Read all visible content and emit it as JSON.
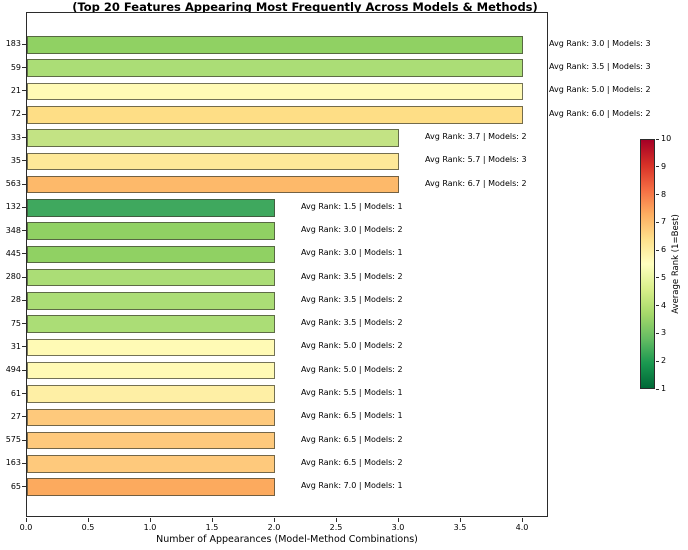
{
  "chart_data": {
    "type": "bar",
    "orientation": "horizontal",
    "title": "(Top 20 Features Appearing Most Frequently Across Models & Methods)",
    "xlabel": "Number of Appearances (Model-Method Combinations)",
    "xlim": [
      0,
      4.21
    ],
    "xticks": [
      "0.0",
      "0.5",
      "1.0",
      "1.5",
      "2.0",
      "2.5",
      "3.0",
      "3.5",
      "4.0"
    ],
    "grid": false,
    "categories": [
      "183",
      "59",
      "21",
      "72",
      "33",
      "35",
      "563",
      "132",
      "348",
      "445",
      "280",
      "28",
      "75",
      "31",
      "494",
      "61",
      "27",
      "575",
      "163",
      "65"
    ],
    "values": [
      4,
      4,
      4,
      4,
      3,
      3,
      3,
      2,
      2,
      2,
      2,
      2,
      2,
      2,
      2,
      2,
      2,
      2,
      2,
      2
    ],
    "features": [
      {
        "feature": "183",
        "appearances": 4,
        "avg_rank": 3.0,
        "models": 3,
        "annotation": "Avg Rank: 3.0 | Models: 3",
        "color": "#90d163"
      },
      {
        "feature": "59",
        "appearances": 4,
        "avg_rank": 3.5,
        "models": 3,
        "annotation": "Avg Rank: 3.5 | Models: 3",
        "color": "#abdd76"
      },
      {
        "feature": "21",
        "appearances": 4,
        "avg_rank": 5.0,
        "models": 2,
        "annotation": "Avg Rank: 5.0 | Models: 2",
        "color": "#fffab5"
      },
      {
        "feature": "72",
        "appearances": 4,
        "avg_rank": 6.0,
        "models": 2,
        "annotation": "Avg Rank: 6.0 | Models: 2",
        "color": "#fede86"
      },
      {
        "feature": "33",
        "appearances": 3,
        "avg_rank": 3.7,
        "models": 2,
        "annotation": "Avg Rank: 3.7 | Models: 2",
        "color": "#c3e384"
      },
      {
        "feature": "35",
        "appearances": 3,
        "avg_rank": 5.7,
        "models": 3,
        "annotation": "Avg Rank: 5.7 | Models: 3",
        "color": "#fee998"
      },
      {
        "feature": "563",
        "appearances": 3,
        "avg_rank": 6.7,
        "models": 2,
        "annotation": "Avg Rank: 6.7 | Models: 2",
        "color": "#fdb96a"
      },
      {
        "feature": "132",
        "appearances": 2,
        "avg_rank": 1.5,
        "models": 1,
        "annotation": "Avg Rank: 1.5 | Models: 1",
        "color": "#3fa85e"
      },
      {
        "feature": "348",
        "appearances": 2,
        "avg_rank": 3.0,
        "models": 2,
        "annotation": "Avg Rank: 3.0 | Models: 2",
        "color": "#90d163"
      },
      {
        "feature": "445",
        "appearances": 2,
        "avg_rank": 3.0,
        "models": 1,
        "annotation": "Avg Rank: 3.0 | Models: 1",
        "color": "#90d163"
      },
      {
        "feature": "280",
        "appearances": 2,
        "avg_rank": 3.5,
        "models": 2,
        "annotation": "Avg Rank: 3.5 | Models: 2",
        "color": "#abdd76"
      },
      {
        "feature": "28",
        "appearances": 2,
        "avg_rank": 3.5,
        "models": 2,
        "annotation": "Avg Rank: 3.5 | Models: 2",
        "color": "#abdd76"
      },
      {
        "feature": "75",
        "appearances": 2,
        "avg_rank": 3.5,
        "models": 2,
        "annotation": "Avg Rank: 3.5 | Models: 2",
        "color": "#abdd76"
      },
      {
        "feature": "31",
        "appearances": 2,
        "avg_rank": 5.0,
        "models": 2,
        "annotation": "Avg Rank: 5.0 | Models: 2",
        "color": "#fffab5"
      },
      {
        "feature": "494",
        "appearances": 2,
        "avg_rank": 5.0,
        "models": 2,
        "annotation": "Avg Rank: 5.0 | Models: 2",
        "color": "#fffab5"
      },
      {
        "feature": "61",
        "appearances": 2,
        "avg_rank": 5.5,
        "models": 1,
        "annotation": "Avg Rank: 5.5 | Models: 1",
        "color": "#feefa5"
      },
      {
        "feature": "27",
        "appearances": 2,
        "avg_rank": 6.5,
        "models": 1,
        "annotation": "Avg Rank: 6.5 | Models: 1",
        "color": "#fec97c"
      },
      {
        "feature": "575",
        "appearances": 2,
        "avg_rank": 6.5,
        "models": 2,
        "annotation": "Avg Rank: 6.5 | Models: 2",
        "color": "#fec97c"
      },
      {
        "feature": "163",
        "appearances": 2,
        "avg_rank": 6.5,
        "models": 2,
        "annotation": "Avg Rank: 6.5 | Models: 2",
        "color": "#fec97c"
      },
      {
        "feature": "65",
        "appearances": 2,
        "avg_rank": 7.0,
        "models": 1,
        "annotation": "Avg Rank: 7.0 | Models: 1",
        "color": "#fcaa5e"
      }
    ],
    "colorbar": {
      "label": "Average Rank (1=Best)",
      "min": 1,
      "max": 10,
      "ticks": [
        "1",
        "2",
        "3",
        "4",
        "5",
        "6",
        "7",
        "8",
        "9",
        "10"
      ],
      "gradient_top_to_bottom": [
        "#a50026",
        "#d73027",
        "#f46d43",
        "#fdae61",
        "#fee08b",
        "#ffffbf",
        "#d9ef8b",
        "#a6d96a",
        "#66bd63",
        "#1a9850",
        "#006837"
      ]
    }
  }
}
